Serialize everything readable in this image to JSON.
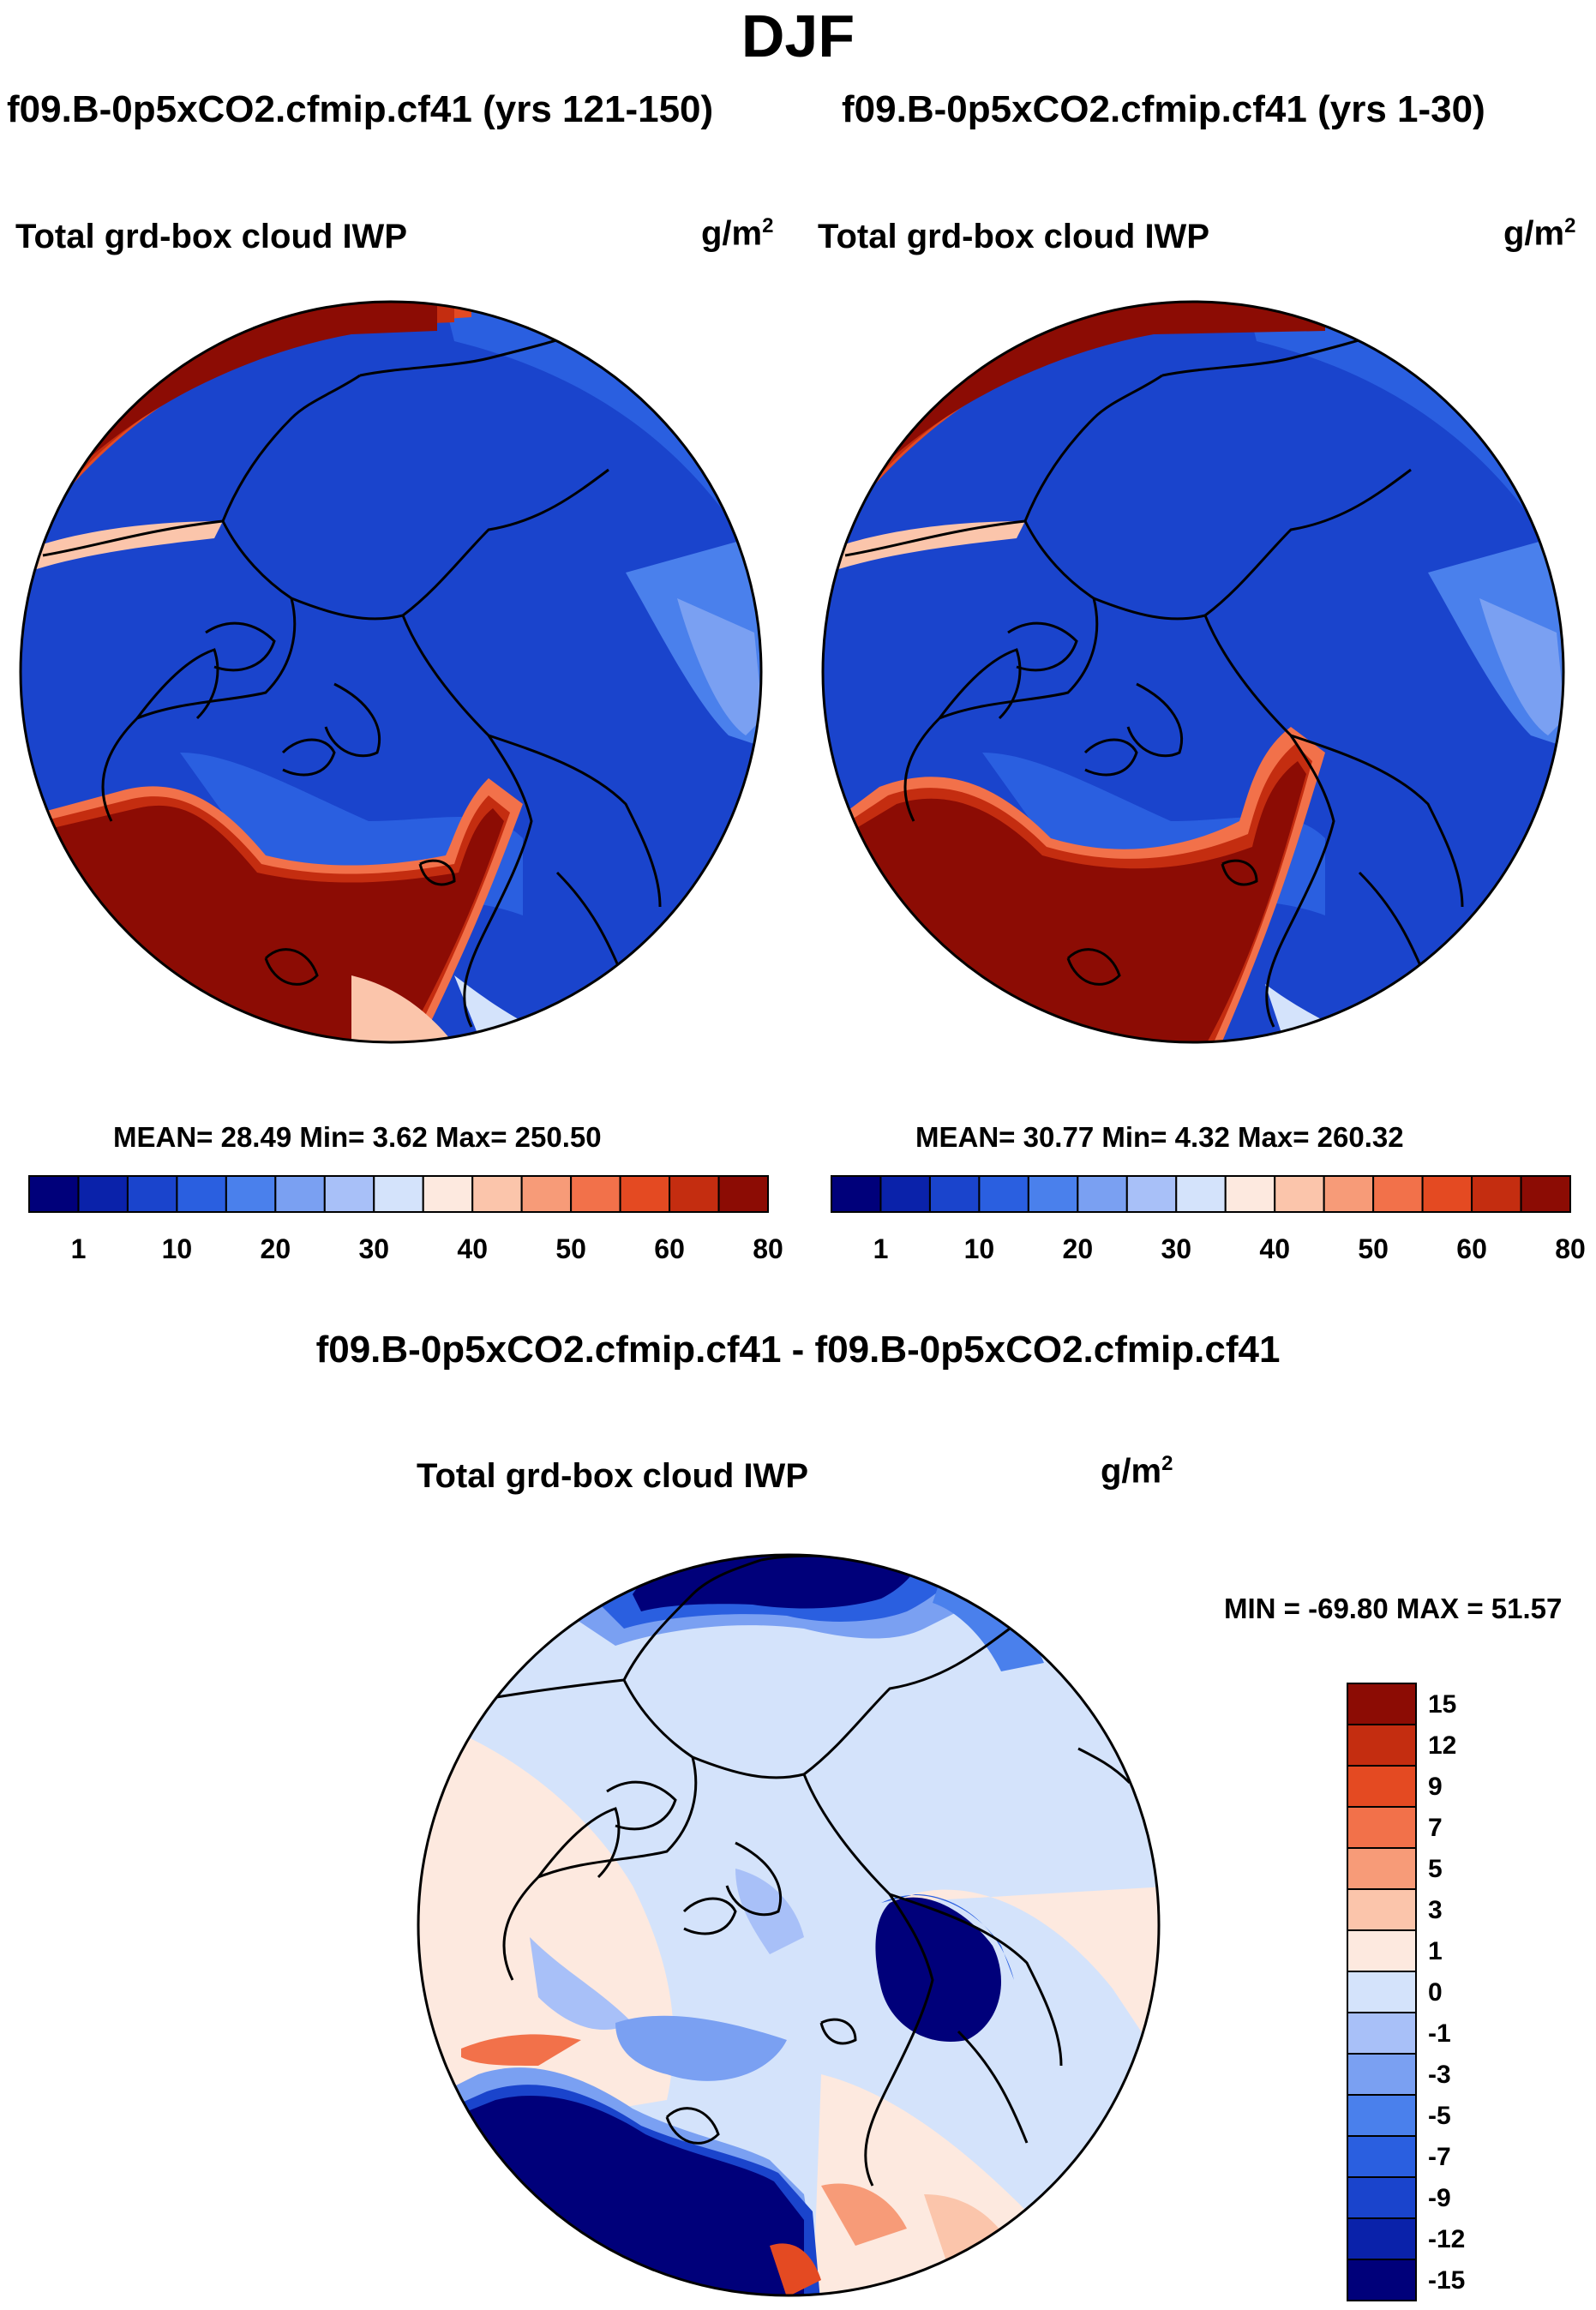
{
  "title": "DJF",
  "panels": [
    {
      "case_label": "f09.B-0p5xCO2.cfmip.cf41 (yrs 121-150)",
      "variable": "Total grd-box cloud IWP",
      "units": "g/m",
      "units_exp": "2",
      "stats": "MEAN=  28.49  Min=   3.62  Max= 250.50"
    },
    {
      "case_label": "f09.B-0p5xCO2.cfmip.cf41 (yrs 1-30)",
      "variable": "Total grd-box cloud IWP",
      "units": "g/m",
      "units_exp": "2",
      "stats": "MEAN=  30.77  Min=   4.32  Max= 260.32"
    }
  ],
  "colorbar_top": {
    "colors": [
      "#00007a",
      "#0a22aa",
      "#1a44cc",
      "#2a5fe0",
      "#4a80ec",
      "#7aa0f2",
      "#a8c0f8",
      "#d4e3fb",
      "#fde9df",
      "#fbc5ab",
      "#f79b78",
      "#f2714a",
      "#e44a22",
      "#c42d10",
      "#8c0c04"
    ],
    "labels": [
      "1",
      "10",
      "20",
      "30",
      "40",
      "50",
      "60",
      "80"
    ]
  },
  "difference": {
    "title": "f09.B-0p5xCO2.cfmip.cf41 - f09.B-0p5xCO2.cfmip.cf41",
    "variable": "Total grd-box cloud IWP",
    "units": "g/m",
    "units_exp": "2",
    "stats": "MIN = -69.80 MAX =  51.57",
    "colorbar": {
      "colors_top_to_bottom": [
        "#8c0c04",
        "#c42d10",
        "#e44a22",
        "#f2714a",
        "#f79b78",
        "#fbc5ab",
        "#fde9df",
        "#d4e3fb",
        "#a8c0f8",
        "#7aa0f2",
        "#4a80ec",
        "#2a5fe0",
        "#1a44cc",
        "#0a22aa",
        "#00007a"
      ],
      "labels_top_to_bottom": [
        "15",
        "12",
        "9",
        "7",
        "5",
        "3",
        "1",
        "0",
        "-1",
        "-3",
        "-5",
        "-7",
        "-9",
        "-12",
        "-15"
      ]
    }
  }
}
